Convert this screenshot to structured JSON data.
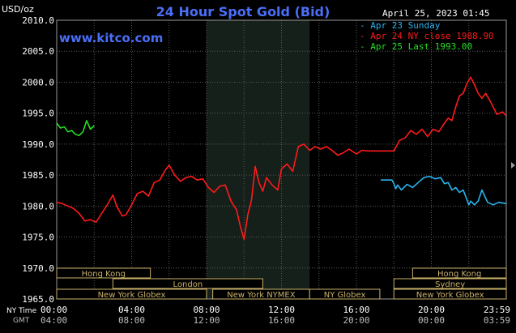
{
  "colors": {
    "background": "#000000",
    "plot_bg": "#000000",
    "night_band": "#15201a",
    "grid": "#5a5a5a",
    "axis_text": "#ffffff",
    "gmt_text": "#bdbdbd",
    "title": "#4b6ef7",
    "brand": "#4b6ef7",
    "apr23": "#29b5f0",
    "apr24": "#ff1a1a",
    "apr25": "#22e022",
    "session_border": "#c9b16a"
  },
  "header": {
    "unit": "USD/oz",
    "title": "24 Hour Spot Gold (Bid)",
    "date_time": "April 25, 2023 01:45",
    "brand": "www.kitco.com"
  },
  "timezone_labels": {
    "ny": "NY Time",
    "gmt": "GMT"
  },
  "sessions": [
    {
      "label": "Hong Kong",
      "start": 0,
      "end": 5,
      "row": 0
    },
    {
      "label": "London",
      "start": 3,
      "end": 11,
      "row": 1
    },
    {
      "label": "New York Globex",
      "start": 0,
      "end": 8,
      "row": 2
    },
    {
      "label": "New York NYMEX",
      "start": 8.33,
      "end": 13.5,
      "row": 2
    },
    {
      "label": "NY Globex",
      "start": 13.5,
      "end": 17.25,
      "row": 2
    },
    {
      "label": "Hong Kong",
      "start": 19,
      "end": 24,
      "row": 0
    },
    {
      "label": "Sydney",
      "start": 18,
      "end": 24,
      "row": 1
    },
    {
      "label": "New York Globex",
      "start": 18,
      "end": 24,
      "row": 2
    }
  ],
  "chart_data": {
    "type": "line",
    "title": "24 Hour Spot Gold (Bid)",
    "ylabel": "USD/oz",
    "xlim": [
      0,
      24
    ],
    "ylim": [
      1965,
      2010
    ],
    "night_band": [
      8,
      13.5
    ],
    "yticks": [
      "2010.0",
      "2005.0",
      "2000.0",
      "1995.0",
      "1990.0",
      "1985.0",
      "1980.0",
      "1975.0",
      "1970.0",
      "1965.0"
    ],
    "xticks_ny": [
      "00:00",
      "04:00",
      "08:00",
      "12:00",
      "16:00",
      "20:00",
      "23:59"
    ],
    "xticks_gmt": [
      "04:00",
      "08:00",
      "12:00",
      "16:00",
      "20:00",
      "00:00",
      "03:59"
    ],
    "grid": true,
    "legend_position": "top-right",
    "series": [
      {
        "name": "Apr 23 Sunday",
        "color_key": "apr23",
        "x": [
          17.3,
          17.6,
          17.9,
          18.0,
          18.1,
          18.2,
          18.4,
          18.7,
          19.0,
          19.3,
          19.6,
          19.9,
          20.2,
          20.5,
          20.7,
          20.9,
          21.1,
          21.3,
          21.5,
          21.7,
          21.85,
          22.0,
          22.1,
          22.3,
          22.5,
          22.7,
          23.0,
          23.3,
          23.6,
          23.99
        ],
        "y": [
          1984.2,
          1984.2,
          1984.2,
          1983.6,
          1982.8,
          1983.4,
          1982.6,
          1983.5,
          1983.0,
          1983.8,
          1984.6,
          1984.8,
          1984.4,
          1984.6,
          1983.6,
          1983.8,
          1982.6,
          1983.0,
          1982.2,
          1982.6,
          1981.4,
          1980.2,
          1980.8,
          1980.2,
          1980.8,
          1982.6,
          1980.6,
          1980.2,
          1980.6,
          1980.4
        ]
      },
      {
        "name": "Apr 24 NY close 1988.90",
        "color_key": "apr24",
        "x": [
          0.0,
          0.3,
          0.6,
          0.9,
          1.2,
          1.5,
          1.8,
          2.1,
          2.4,
          2.7,
          3.0,
          3.2,
          3.5,
          3.7,
          4.0,
          4.3,
          4.6,
          4.9,
          5.2,
          5.5,
          5.8,
          6.0,
          6.3,
          6.6,
          6.9,
          7.2,
          7.5,
          7.8,
          8.1,
          8.4,
          8.7,
          9.0,
          9.3,
          9.6,
          9.8,
          10.0,
          10.2,
          10.4,
          10.6,
          10.8,
          11.0,
          11.2,
          11.5,
          11.8,
          12.0,
          12.3,
          12.6,
          12.9,
          13.2,
          13.5,
          13.8,
          14.1,
          14.4,
          14.7,
          15.0,
          15.3,
          15.6,
          16.0,
          16.3,
          16.6,
          16.9,
          17.2,
          17.5,
          17.8,
          18.0,
          18.3,
          18.6,
          18.9,
          19.2,
          19.5,
          19.8,
          20.1,
          20.4,
          20.7,
          20.9,
          21.1,
          21.3,
          21.5,
          21.7,
          21.9,
          22.1,
          22.3,
          22.5,
          22.7,
          22.9,
          23.2,
          23.5,
          23.8,
          23.99
        ],
        "y": [
          1980.6,
          1980.4,
          1980.0,
          1979.6,
          1978.8,
          1977.6,
          1977.8,
          1977.4,
          1978.8,
          1980.2,
          1981.8,
          1980.0,
          1978.4,
          1978.6,
          1980.2,
          1982.0,
          1982.4,
          1981.6,
          1983.8,
          1984.2,
          1985.8,
          1986.6,
          1985.0,
          1984.0,
          1984.6,
          1984.8,
          1984.2,
          1984.4,
          1983.0,
          1982.2,
          1983.2,
          1983.4,
          1980.8,
          1979.4,
          1976.8,
          1974.6,
          1978.6,
          1981.0,
          1986.4,
          1983.8,
          1982.4,
          1984.6,
          1983.4,
          1982.6,
          1986.0,
          1986.8,
          1985.6,
          1989.6,
          1990.0,
          1989.0,
          1989.6,
          1989.2,
          1989.6,
          1989.0,
          1988.2,
          1988.6,
          1989.2,
          1988.4,
          1989.0,
          1988.9,
          1988.9,
          1988.9,
          1988.9,
          1988.9,
          1988.9,
          1990.6,
          1991.0,
          1992.2,
          1991.6,
          1992.4,
          1991.2,
          1992.4,
          1992.0,
          1993.4,
          1994.2,
          1993.8,
          1996.0,
          1997.8,
          1998.2,
          1999.8,
          2000.8,
          1999.6,
          1998.2,
          1997.4,
          1998.2,
          1996.6,
          1994.8,
          1995.2,
          1994.6
        ]
      },
      {
        "name": "Apr 25 Last 1993.00",
        "color_key": "apr25",
        "x": [
          0.0,
          0.2,
          0.4,
          0.6,
          0.8,
          1.0,
          1.2,
          1.4,
          1.6,
          1.8,
          2.0
        ],
        "y": [
          1993.4,
          1992.6,
          1992.8,
          1992.0,
          1992.2,
          1991.6,
          1991.4,
          1992.0,
          1993.8,
          1992.4,
          1993.0
        ]
      }
    ]
  }
}
